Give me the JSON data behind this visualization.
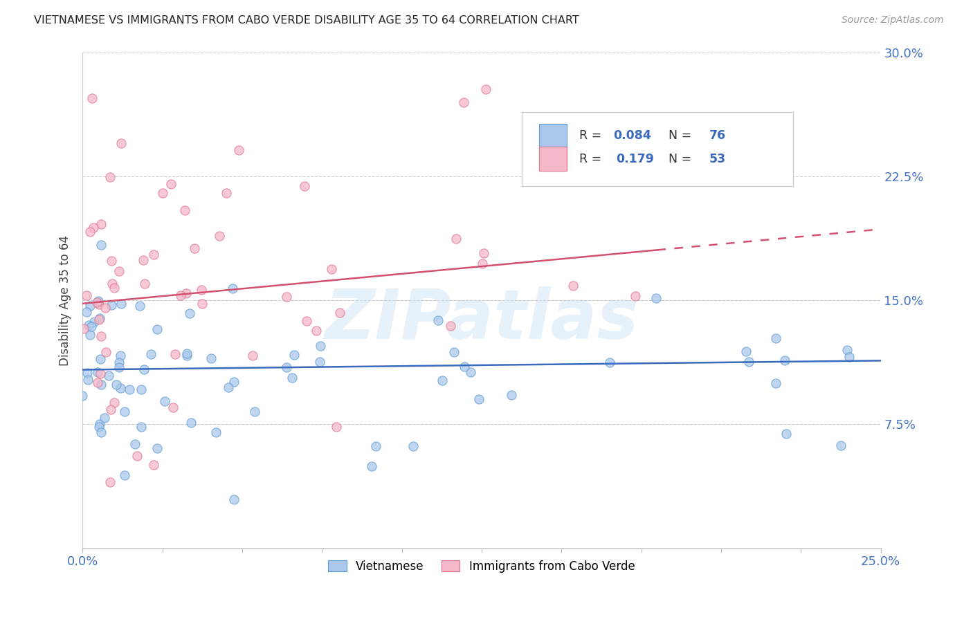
{
  "title": "VIETNAMESE VS IMMIGRANTS FROM CABO VERDE DISABILITY AGE 35 TO 64 CORRELATION CHART",
  "source": "Source: ZipAtlas.com",
  "ylabel": "Disability Age 35 to 64",
  "xlim": [
    0.0,
    0.25
  ],
  "ylim": [
    0.0,
    0.3
  ],
  "xticks": [
    0.0,
    0.025,
    0.05,
    0.075,
    0.1,
    0.125,
    0.15,
    0.175,
    0.2,
    0.225,
    0.25
  ],
  "yticks": [
    0.0,
    0.075,
    0.15,
    0.225,
    0.3
  ],
  "blue_color": "#aac8eb",
  "blue_edge_color": "#5b9bd5",
  "pink_color": "#f5b8c8",
  "pink_edge_color": "#e07090",
  "trendline_blue_color": "#3a6bbf",
  "trendline_pink_color": "#d45070",
  "watermark": "ZIPatlas",
  "blue_label": "Vietnamese",
  "pink_label": "Immigrants from Cabo Verde",
  "blue_r": "0.084",
  "blue_n": "76",
  "pink_r": "0.179",
  "pink_n": "53",
  "blue_intercept": 0.108,
  "blue_slope": 0.022,
  "pink_intercept": 0.148,
  "pink_slope": 0.18
}
